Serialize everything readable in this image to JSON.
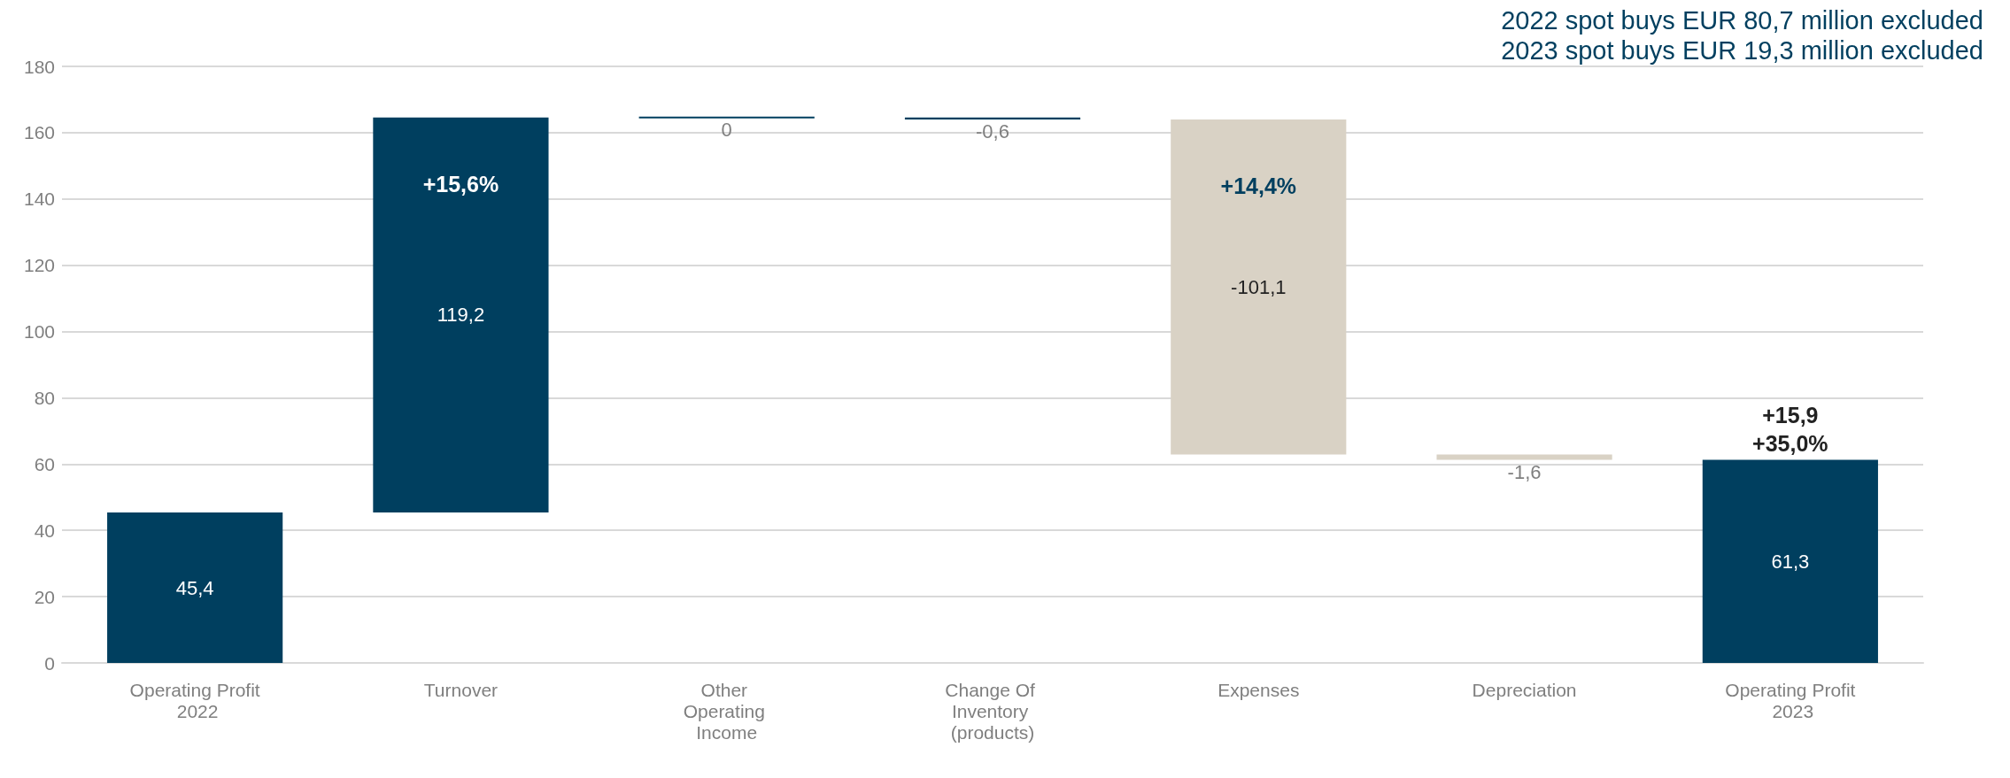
{
  "chart_data": {
    "type": "bar",
    "categories": [
      "Operating Profit 2022",
      "Turnover",
      "Other Operating Income",
      "Change Of Inventory (products)",
      "Expenses",
      "Depreciation",
      "Operating Profit 2023"
    ],
    "values": [
      45.4,
      119.2,
      0,
      -0.6,
      -101.1,
      -1.6,
      61.3
    ],
    "base": [
      0,
      45.4,
      164.6,
      164.6,
      164.0,
      62.9,
      0
    ],
    "colors": [
      "#003f5f",
      "#003f5f",
      "#003f5f",
      "#003f5f",
      "#d9d2c5",
      "#d9d2c5",
      "#003f5f"
    ],
    "value_labels": [
      "45,4",
      "119,2",
      "0",
      "-0,6",
      "-101,1",
      "-1,6",
      "61,3"
    ],
    "ylim": [
      0,
      180
    ],
    "yticks": [
      0,
      20,
      40,
      60,
      80,
      100,
      120,
      140,
      160,
      180
    ],
    "grid": "y",
    "annotations": [
      "2022 spot buys EUR 80,7 million excluded",
      "2023 spot buys EUR 19,3 million excluded",
      {
        "text": "+15,6%",
        "x": "Turnover",
        "y": 164.6
      },
      {
        "text": "+14,4%",
        "x": "Expenses",
        "y": 164.0
      },
      {
        "text": "+15,9",
        "x": "Operating Profit 2023",
        "y": 61.3
      },
      {
        "text": "+35,0%",
        "x": "Operating Profit 2023",
        "y": 61.3
      }
    ]
  }
}
